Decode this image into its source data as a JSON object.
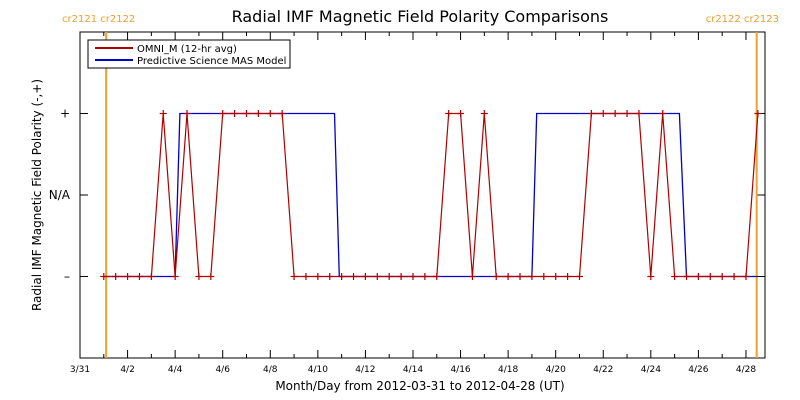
{
  "chart_data": {
    "type": "line",
    "title": "Radial IMF Magnetic Field Polarity Comparisons",
    "xlabel": "Month/Day from 2012-03-31 to 2012-04-28 (UT)",
    "ylabel": "Radial IMF Magnetic Field Polarity (-,+)",
    "x_range_days": [
      0,
      28.8
    ],
    "y_range": [
      -2,
      2
    ],
    "x_ticks": [
      {
        "day": 0,
        "label": "3/31"
      },
      {
        "day": 2,
        "label": "4/2"
      },
      {
        "day": 4,
        "label": "4/4"
      },
      {
        "day": 6,
        "label": "4/6"
      },
      {
        "day": 8,
        "label": "4/8"
      },
      {
        "day": 10,
        "label": "4/10"
      },
      {
        "day": 12,
        "label": "4/12"
      },
      {
        "day": 14,
        "label": "4/14"
      },
      {
        "day": 16,
        "label": "4/16"
      },
      {
        "day": 18,
        "label": "4/18"
      },
      {
        "day": 20,
        "label": "4/20"
      },
      {
        "day": 22,
        "label": "4/22"
      },
      {
        "day": 24,
        "label": "4/24"
      },
      {
        "day": 26,
        "label": "4/26"
      },
      {
        "day": 28,
        "label": "4/28"
      }
    ],
    "y_ticks": [
      {
        "value": 1,
        "label": "+"
      },
      {
        "value": 0,
        "label": "N/A"
      },
      {
        "value": -1,
        "label": "–"
      }
    ],
    "carrington_markers": [
      {
        "day": 1.1,
        "label": "cr2121 cr2122"
      },
      {
        "day": 28.45,
        "label": "cr2122 cr2123"
      }
    ],
    "legend": {
      "placement": "top-left",
      "entries": [
        {
          "name": "OMNI_M (12-hr avg)",
          "color": "#b00000"
        },
        {
          "name": "Predictive Science MAS Model",
          "color": "#0000cc"
        }
      ]
    },
    "series": [
      {
        "name": "OMNI_M (12-hr avg)",
        "color": "#b00000",
        "marker": "plus",
        "x": [
          1.0,
          1.5,
          2.0,
          2.5,
          3.0,
          3.5,
          4.0,
          4.5,
          5.0,
          5.5,
          6.0,
          6.5,
          7.0,
          7.5,
          8.0,
          8.5,
          9.0,
          9.5,
          10.0,
          10.5,
          11.0,
          11.5,
          12.0,
          12.5,
          13.0,
          13.5,
          14.0,
          14.5,
          15.0,
          15.5,
          16.0,
          16.5,
          17.0,
          17.5,
          18.0,
          18.5,
          19.0,
          19.5,
          20.0,
          20.5,
          21.0,
          21.5,
          22.0,
          22.5,
          23.0,
          23.5,
          24.0,
          24.5,
          25.0,
          25.5,
          26.0,
          26.5,
          27.0,
          27.5,
          28.0,
          28.5
        ],
        "y": [
          -1,
          -1,
          -1,
          -1,
          -1,
          1,
          -1,
          1,
          -1,
          -1,
          1,
          1,
          1,
          1,
          1,
          1,
          -1,
          -1,
          -1,
          -1,
          -1,
          -1,
          -1,
          -1,
          -1,
          -1,
          -1,
          -1,
          -1,
          1,
          1,
          -1,
          1,
          -1,
          -1,
          -1,
          -1,
          -1,
          -1,
          -1,
          -1,
          1,
          1,
          1,
          1,
          1,
          -1,
          1,
          -1,
          -1,
          -1,
          -1,
          -1,
          -1,
          -1,
          1
        ]
      },
      {
        "name": "Predictive Science MAS Model",
        "color": "#0000cc",
        "step_x": [
          1.0,
          4.0,
          4.2,
          10.7,
          10.9,
          19.0,
          19.2,
          25.2,
          25.5,
          28.5
        ],
        "step_y": [
          -1,
          -1,
          1,
          1,
          -1,
          -1,
          1,
          1,
          -1,
          -1
        ]
      }
    ]
  }
}
